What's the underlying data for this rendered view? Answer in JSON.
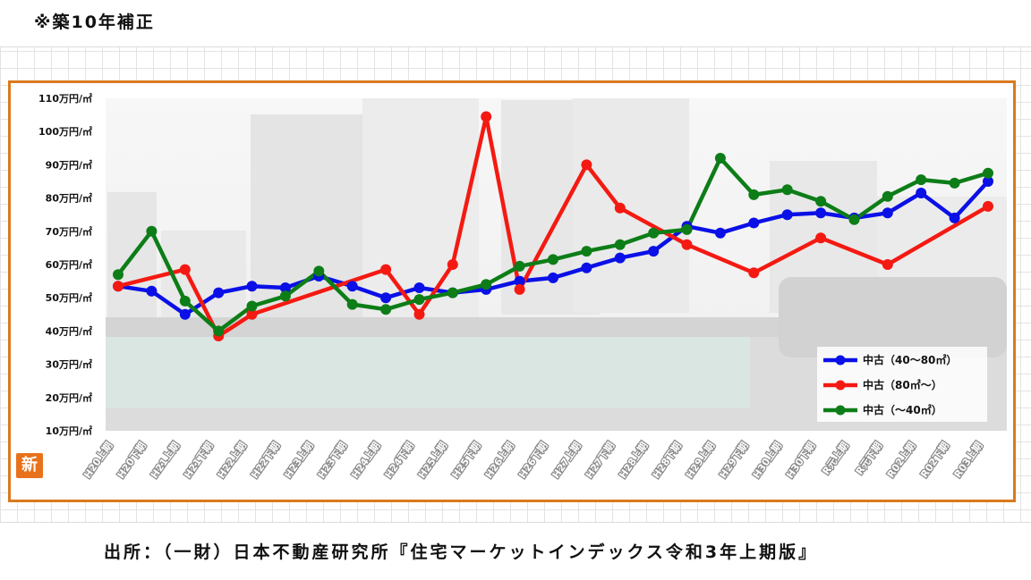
{
  "header": {
    "note": "※築10年補正"
  },
  "footer": {
    "source": "出所：（一財）日本不動産研究所『住宅マーケットインデックス令和3年上期版』"
  },
  "logo": {
    "glyph": "新"
  },
  "chart_data": {
    "type": "line",
    "title": "",
    "xlabel": "",
    "ylabel": "",
    "ylim": [
      10,
      110
    ],
    "yticks": [
      {
        "value": 10,
        "label": "10万円/㎡"
      },
      {
        "value": 20,
        "label": "20万円/㎡"
      },
      {
        "value": 30,
        "label": "30万円/㎡"
      },
      {
        "value": 40,
        "label": "40万円/㎡"
      },
      {
        "value": 50,
        "label": "50万円/㎡"
      },
      {
        "value": 60,
        "label": "60万円/㎡"
      },
      {
        "value": 70,
        "label": "70万円/㎡"
      },
      {
        "value": 80,
        "label": "80万円/㎡"
      },
      {
        "value": 90,
        "label": "90万円/㎡"
      },
      {
        "value": 100,
        "label": "100万円/㎡"
      },
      {
        "value": 110,
        "label": "110万円/㎡"
      }
    ],
    "categories": [
      "H20上期",
      "H20下期",
      "H21上期",
      "H21下期",
      "H22上期",
      "H22下期",
      "H23上期",
      "H23下期",
      "H24上期",
      "H24下期",
      "H25上期",
      "H25下期",
      "H26上期",
      "H26下期",
      "H27上期",
      "H27下期",
      "H28上期",
      "H28下期",
      "H29上期",
      "H29下期",
      "H30上期",
      "H30下期",
      "R元上期",
      "R元下期",
      "R02上期",
      "R02下期",
      "R03上期"
    ],
    "legend_position": "bottom-right",
    "grid": false,
    "series": [
      {
        "name": "中古（40～80㎡）",
        "color": "#0a10e6",
        "values": [
          53.5,
          52,
          45,
          51.5,
          53.5,
          53,
          56.5,
          53.5,
          50,
          53,
          51.5,
          52.5,
          55,
          56,
          59,
          62,
          64,
          71.5,
          69.5,
          72.5,
          75,
          75.5,
          74,
          75.5,
          81.5,
          74,
          85
        ]
      },
      {
        "name": "中古（80㎡～）",
        "color": "#f41a12",
        "values": [
          53.5,
          null,
          58.5,
          38.5,
          45,
          null,
          null,
          null,
          58.5,
          45,
          60,
          104.5,
          52.5,
          null,
          90,
          77,
          null,
          66,
          null,
          57.5,
          null,
          68,
          null,
          60,
          null,
          null,
          77.5
        ]
      },
      {
        "name": "中古（～40㎡）",
        "color": "#0d7d17",
        "values": [
          57,
          70,
          49,
          40,
          47.5,
          50.5,
          58,
          48,
          46.5,
          49.5,
          51.5,
          54,
          59.5,
          61.5,
          64,
          66,
          69.5,
          70.5,
          92,
          81,
          82.5,
          79,
          73.5,
          80.5,
          85.5,
          84.5,
          87.5
        ]
      }
    ]
  }
}
